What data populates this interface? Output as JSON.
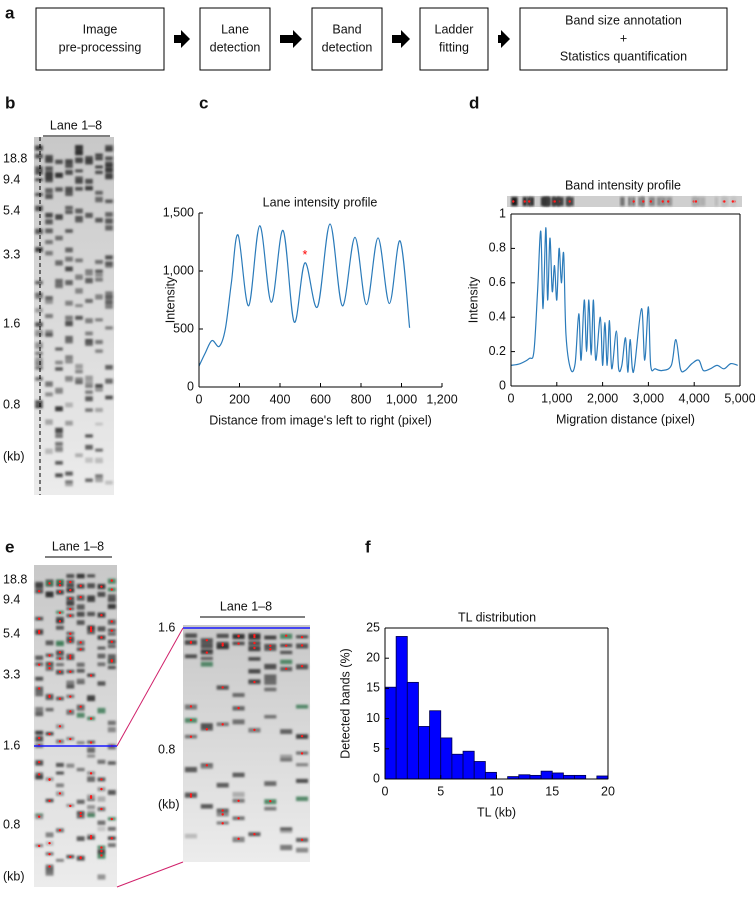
{
  "panel_labels": [
    "a",
    "b",
    "c",
    "d",
    "e",
    "f"
  ],
  "flowchart": {
    "steps": [
      [
        "Image",
        "pre-processing"
      ],
      [
        "Lane",
        "detection"
      ],
      [
        "Band",
        "detection"
      ],
      [
        "Ladder",
        "fitting"
      ],
      [
        "Band size annotation",
        "+",
        "Statistics quantification"
      ]
    ]
  },
  "gel_b": {
    "header": "Lane 1–8",
    "size_labels": [
      "18.8",
      "9.4",
      "5.4",
      "3.3",
      "1.6",
      "0.8"
    ],
    "unit": "(kb)"
  },
  "gel_e": {
    "header": "Lane 1–8",
    "size_labels": [
      "18.8",
      "9.4",
      "5.4",
      "3.3",
      "1.6",
      "0.8"
    ],
    "unit": "(kb)",
    "zoom": {
      "header": "Lane 1–8",
      "size_labels": [
        "1.6",
        "0.8"
      ],
      "unit": "(kb)"
    }
  },
  "chart_data": [
    {
      "type": "line",
      "title": "Lane intensity profile",
      "x_label": "Distance from image's left to right (pixel)",
      "y_label": "Intensity",
      "x": [
        0,
        30,
        64,
        100,
        130,
        160,
        193,
        245,
        300,
        357,
        415,
        470,
        523,
        585,
        647,
        708,
        770,
        827,
        884,
        940,
        993,
        1040
      ],
      "values": [
        180,
        290,
        400,
        350,
        500,
        900,
        1310,
        700,
        1390,
        730,
        1350,
        560,
        1070,
        690,
        1405,
        700,
        1290,
        710,
        1285,
        720,
        1260,
        510
      ],
      "color": "#2b7bba",
      "xlim": [
        0,
        1200
      ],
      "xticks": [
        0,
        200,
        400,
        600,
        800,
        {
          "value": 1000,
          "label": "1,000"
        },
        {
          "value": 1200,
          "label": "1,200"
        }
      ],
      "ylim": [
        0,
        1500
      ],
      "yticks": [
        0,
        500,
        {
          "value": 1000,
          "label": "1,000"
        },
        {
          "value": 1500,
          "label": "1,500"
        }
      ],
      "grid": false,
      "annotations": [
        {
          "text": "*",
          "x": 523,
          "y": 1130,
          "color": "#ff0000"
        }
      ]
    },
    {
      "type": "line",
      "title": "Band intensity profile",
      "x_label": "Migration distance (pixel)",
      "y_label": "Intensity",
      "x": [
        0,
        200,
        400,
        500,
        580,
        650,
        700,
        760,
        800,
        850,
        900,
        950,
        1000,
        1050,
        1100,
        1150,
        1200,
        1300,
        1400,
        1480,
        1530,
        1600,
        1650,
        1700,
        1750,
        1800,
        1850,
        1950,
        2000,
        2050,
        2100,
        2150,
        2200,
        2300,
        2350,
        2420,
        2500,
        2550,
        2600,
        2650,
        2700,
        2850,
        2920,
        3000,
        3050,
        3150,
        3300,
        3500,
        3600,
        3700,
        3800,
        3950,
        4100,
        4200,
        4350,
        4500,
        4650,
        4800,
        4950
      ],
      "values": [
        0.12,
        0.13,
        0.16,
        0.2,
        0.55,
        0.9,
        0.45,
        0.92,
        0.5,
        0.86,
        0.55,
        0.7,
        0.5,
        0.8,
        0.6,
        0.77,
        0.3,
        0.1,
        0.13,
        0.42,
        0.15,
        0.5,
        0.2,
        0.5,
        0.18,
        0.5,
        0.15,
        0.4,
        0.12,
        0.37,
        0.12,
        0.38,
        0.1,
        0.32,
        0.1,
        0.12,
        0.28,
        0.08,
        0.27,
        0.1,
        0.12,
        0.45,
        0.15,
        0.46,
        0.12,
        0.1,
        0.09,
        0.12,
        0.27,
        0.1,
        0.09,
        0.13,
        0.15,
        0.09,
        0.1,
        0.12,
        0.1,
        0.13,
        0.12
      ],
      "color": "#2b7bba",
      "xlim": [
        0,
        5000
      ],
      "xticks": [
        0,
        {
          "value": 1000,
          "label": "1,000"
        },
        {
          "value": 2000,
          "label": "2,000"
        },
        {
          "value": 3000,
          "label": "3,000"
        },
        {
          "value": 4000,
          "label": "4,000"
        },
        {
          "value": 5000,
          "label": "5,000"
        }
      ],
      "ylim": [
        0,
        1
      ],
      "yticks": [
        0,
        0.2,
        0.4,
        0.6,
        0.8,
        1
      ],
      "grid": false
    },
    {
      "type": "histogram",
      "title": "TL distribution",
      "x_label": "TL (kb)",
      "y_label": "Detected bands (%)",
      "bins": [
        0,
        1,
        2,
        3,
        4,
        5,
        6,
        7,
        8,
        9,
        10,
        11,
        12,
        13,
        14,
        15,
        16,
        17,
        18,
        19,
        20
      ],
      "values": [
        15.2,
        23.6,
        16,
        8.7,
        11.3,
        6.8,
        4.1,
        4.6,
        2.9,
        1.1,
        0,
        0.4,
        0.7,
        0.6,
        1.3,
        1,
        0.6,
        0.6,
        0,
        0.5
      ],
      "color": "#0000ff",
      "xlim": [
        0,
        20
      ],
      "xticks": [
        0,
        5,
        10,
        15,
        20
      ],
      "ylim": [
        0,
        25
      ],
      "yticks": [
        0,
        5,
        10,
        15,
        20,
        25
      ],
      "grid": false
    }
  ]
}
